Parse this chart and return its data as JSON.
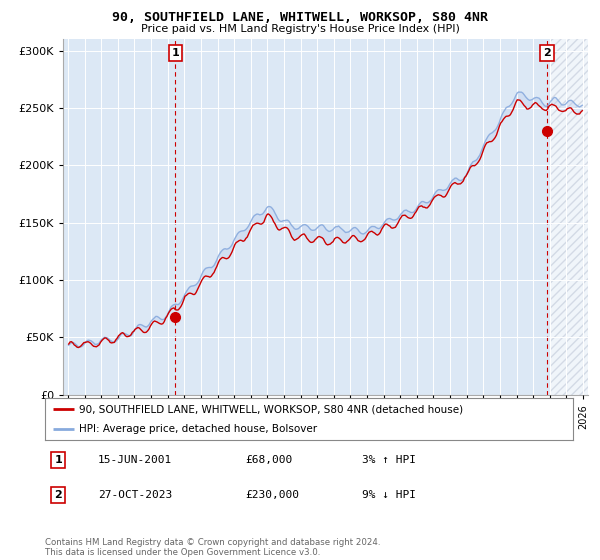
{
  "title": "90, SOUTHFIELD LANE, WHITWELL, WORKSOP, S80 4NR",
  "subtitle": "Price paid vs. HM Land Registry's House Price Index (HPI)",
  "background_color": "#ffffff",
  "plot_bg_color": "#dce8f5",
  "grid_color": "#ffffff",
  "red_line_color": "#cc0000",
  "blue_line_color": "#88aadd",
  "hatch_color": "#c0c8d8",
  "marker1_x": 2001.46,
  "marker1_price": 68000,
  "marker2_x": 2023.83,
  "marker2_price": 230000,
  "legend_line1": "90, SOUTHFIELD LANE, WHITWELL, WORKSOP, S80 4NR (detached house)",
  "legend_line2": "HPI: Average price, detached house, Bolsover",
  "annotation1": [
    "1",
    "15-JUN-2001",
    "£68,000",
    "3% ↑ HPI"
  ],
  "annotation2": [
    "2",
    "27-OCT-2023",
    "£230,000",
    "9% ↓ HPI"
  ],
  "footer": "Contains HM Land Registry data © Crown copyright and database right 2024.\nThis data is licensed under the Open Government Licence v3.0.",
  "ylim": [
    0,
    310000
  ],
  "yticks": [
    0,
    50000,
    100000,
    150000,
    200000,
    250000,
    300000
  ],
  "xlim_left": 1994.7,
  "xlim_right": 2026.3,
  "hatch_start": 2024.0
}
